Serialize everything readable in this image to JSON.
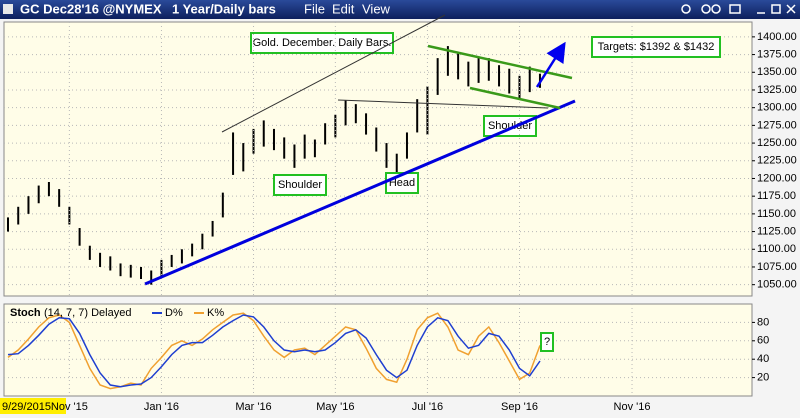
{
  "window": {
    "title": "GC Dec28'16 @NYMEX",
    "timeframe": "1 Year/Daily bars",
    "menu": [
      "File",
      "Edit",
      "View"
    ]
  },
  "chart_data": [
    {
      "type": "hl_bar",
      "color": "#000000",
      "high": [
        1145,
        1160,
        1175,
        1190,
        1195,
        1185,
        1160,
        1130,
        1105,
        1095,
        1090,
        1080,
        1078,
        1075,
        1070,
        1085,
        1092,
        1100,
        1108,
        1122,
        1140,
        1180,
        1265,
        1250,
        1270,
        1282,
        1270,
        1258,
        1248,
        1262,
        1255,
        1278,
        1290,
        1310,
        1305,
        1292,
        1272,
        1250,
        1235,
        1265,
        1312,
        1330,
        1370,
        1387,
        1378,
        1365,
        1372,
        1370,
        1360,
        1355,
        1345,
        1358,
        1348,
        null,
        null,
        null,
        null,
        null,
        null,
        null,
        null,
        null,
        null,
        null,
        null,
        null,
        null,
        null,
        null,
        null,
        null,
        null,
        null
      ],
      "low": [
        1125,
        1135,
        1150,
        1165,
        1175,
        1160,
        1135,
        1105,
        1085,
        1075,
        1070,
        1062,
        1060,
        1058,
        1050,
        1062,
        1075,
        1080,
        1090,
        1100,
        1118,
        1145,
        1205,
        1210,
        1235,
        1245,
        1240,
        1228,
        1215,
        1228,
        1230,
        1248,
        1258,
        1275,
        1278,
        1262,
        1238,
        1215,
        1205,
        1228,
        1265,
        1262,
        1318,
        1345,
        1340,
        1330,
        1335,
        1338,
        1330,
        1320,
        1312,
        1322,
        1328,
        null,
        null,
        null,
        null,
        null,
        null,
        null,
        null,
        null,
        null,
        null,
        null,
        null,
        null,
        null,
        null,
        null,
        null,
        null,
        null
      ],
      "ylim": [
        1034,
        1421
      ],
      "yticks": [
        {
          "value": 1050,
          "label": "1050.00"
        },
        {
          "value": 1075,
          "label": "1075.00"
        },
        {
          "value": 1100,
          "label": "1100.00"
        },
        {
          "value": 1125,
          "label": "1125.00"
        },
        {
          "value": 1150,
          "label": "1150.00"
        },
        {
          "value": 1175,
          "label": "1175.00"
        },
        {
          "value": 1200,
          "label": "1200.00"
        },
        {
          "value": 1225,
          "label": "1225.00"
        },
        {
          "value": 1250,
          "label": "1250.00"
        },
        {
          "value": 1275,
          "label": "1275.00"
        },
        {
          "value": 1300,
          "label": "1300.00"
        },
        {
          "value": 1325,
          "label": "1325.00"
        },
        {
          "value": 1350,
          "label": "1350.00"
        },
        {
          "value": 1375,
          "label": "1375.00"
        },
        {
          "value": 1400,
          "label": "1400.00"
        }
      ],
      "grid": true,
      "annotations": [
        "Gold. December. Daily Bars.",
        "Shoulder",
        "Head",
        "Shoulder",
        "Targets:  $1392 & $1432"
      ]
    },
    {
      "type": "line",
      "title": "Stoch",
      "subtitle": "(14, 7, 7) Delayed",
      "categories": [
        "9/29/2015",
        null,
        null,
        null,
        null,
        null,
        "Nov '15",
        null,
        null,
        null,
        null,
        null,
        null,
        null,
        null,
        "Jan '16",
        null,
        null,
        null,
        null,
        null,
        null,
        null,
        null,
        "Mar '16",
        null,
        null,
        null,
        null,
        null,
        null,
        null,
        "May '16",
        null,
        null,
        null,
        null,
        null,
        null,
        null,
        null,
        "Jul '16",
        null,
        null,
        null,
        null,
        null,
        null,
        null,
        null,
        "Sep '16",
        null,
        null,
        null,
        null,
        null,
        null,
        null,
        null,
        null,
        null,
        "Nov '16",
        null,
        null,
        null,
        null,
        null,
        null,
        null,
        null,
        null,
        null,
        null
      ],
      "series": [
        {
          "name": "D%",
          "color": "#1f3fd0",
          "values": [
            45,
            46,
            55,
            66,
            78,
            85,
            84,
            68,
            45,
            25,
            12,
            10,
            12,
            13,
            20,
            32,
            45,
            55,
            58,
            58,
            66,
            75,
            82,
            88,
            86,
            75,
            60,
            50,
            48,
            50,
            48,
            50,
            58,
            68,
            72,
            63,
            45,
            28,
            20,
            28,
            55,
            75,
            85,
            82,
            65,
            52,
            55,
            68,
            65,
            50,
            30,
            22,
            38,
            null,
            null,
            null,
            null,
            null,
            null,
            null,
            null,
            null,
            null,
            null,
            null,
            null,
            null,
            null,
            null,
            null,
            null,
            null,
            null
          ]
        },
        {
          "name": "K%",
          "color": "#f0a030",
          "values": [
            42,
            50,
            62,
            75,
            85,
            88,
            80,
            55,
            30,
            12,
            8,
            10,
            14,
            12,
            30,
            42,
            55,
            60,
            55,
            62,
            72,
            80,
            88,
            90,
            82,
            65,
            50,
            42,
            50,
            52,
            45,
            55,
            65,
            75,
            72,
            52,
            30,
            18,
            15,
            40,
            72,
            85,
            90,
            75,
            50,
            45,
            65,
            75,
            58,
            38,
            18,
            25,
            55,
            null,
            null,
            null,
            null,
            null,
            null,
            null,
            null,
            null,
            null,
            null,
            null,
            null,
            null,
            null,
            null,
            null,
            null,
            null,
            null
          ]
        }
      ],
      "ylim": [
        0,
        100
      ],
      "yticks": [
        20,
        40,
        60,
        80
      ],
      "grid": true,
      "annotation": "?"
    }
  ]
}
